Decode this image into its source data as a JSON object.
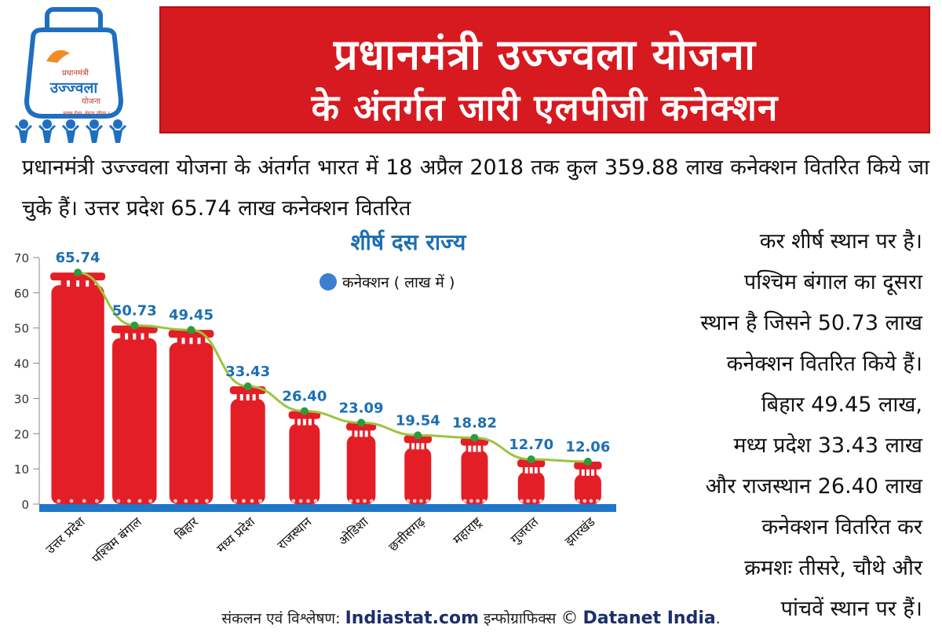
{
  "banner": {
    "line1": "प्रधानमंत्री उज्ज्वला योजना",
    "line2": "के अंतर्गत जारी एलपीजी कनेक्शन"
  },
  "logo": {
    "text1": "प्रधानमंत्री",
    "text2": "उज्ज्वला",
    "text3": "योजना",
    "tagline": "स्वच्छ ईंधन, बेहतर जीवन !"
  },
  "intro": "प्रधानमंत्री उज्ज्वला योजना के अंतर्गत भारत में 18 अप्रैल 2018 तक कुल 359.88 लाख कनेक्शन वितरित किये जा चुके हैं। उत्तर प्रदेश 65.74 लाख कनेक्शन वितरित",
  "side_lines": [
    "कर शीर्ष स्थान पर है।",
    "पश्चिम बंगाल का दूसरा",
    "स्थान है जिसने 50.73 लाख",
    "कनेक्शन वितरित किये हैं।",
    "बिहार 49.45 लाख,",
    "मध्य प्रदेश 33.43 लाख",
    "और राजस्थान 26.40 लाख",
    "कनेक्शन वितरित कर",
    "क्रमशः तीसरे, चौथे और",
    "पांचवें स्थान पर हैं।"
  ],
  "footer": {
    "prefix": "संकलन एवं विश्लेषण:",
    "brand1": "Indiastat.com",
    "mid": "इन्फोग्राफिक्स",
    "copyright": "©",
    "brand2": "Datanet India",
    "suffix": "."
  },
  "colors": {
    "banner": "#d71920",
    "bar": "#e41e26",
    "axis": "#1f77c9",
    "line": "#9bc53d",
    "point": "#2e9a3e",
    "value_label": "#1b6fb5",
    "legend_dot": "#3a7fd0"
  },
  "chart_data": {
    "type": "bar",
    "title": "शीर्ष दस राज्य",
    "legend": "कनेक्शन ( लाख में )",
    "categories": [
      "उत्तर प्रदेश",
      "पश्चिम बंगाल",
      "बिहार",
      "मध्य प्रदेश",
      "राजस्थान",
      "ओडिशा",
      "छत्तीसगढ़",
      "महाराष्ट्र",
      "गुजरात",
      "झारखंड"
    ],
    "values": [
      65.74,
      50.73,
      49.45,
      33.43,
      26.4,
      23.09,
      19.54,
      18.82,
      12.7,
      12.06
    ],
    "value_labels": [
      "65.74",
      "50.73",
      "49.45",
      "33.43",
      "26.40",
      "23.09",
      "19.54",
      "18.82",
      "12.70",
      "12.06"
    ],
    "y_ticks": [
      0,
      10,
      20,
      30,
      40,
      50,
      60,
      70
    ],
    "ylim": [
      0,
      70
    ],
    "grid": false,
    "legend_position": "top-right"
  }
}
